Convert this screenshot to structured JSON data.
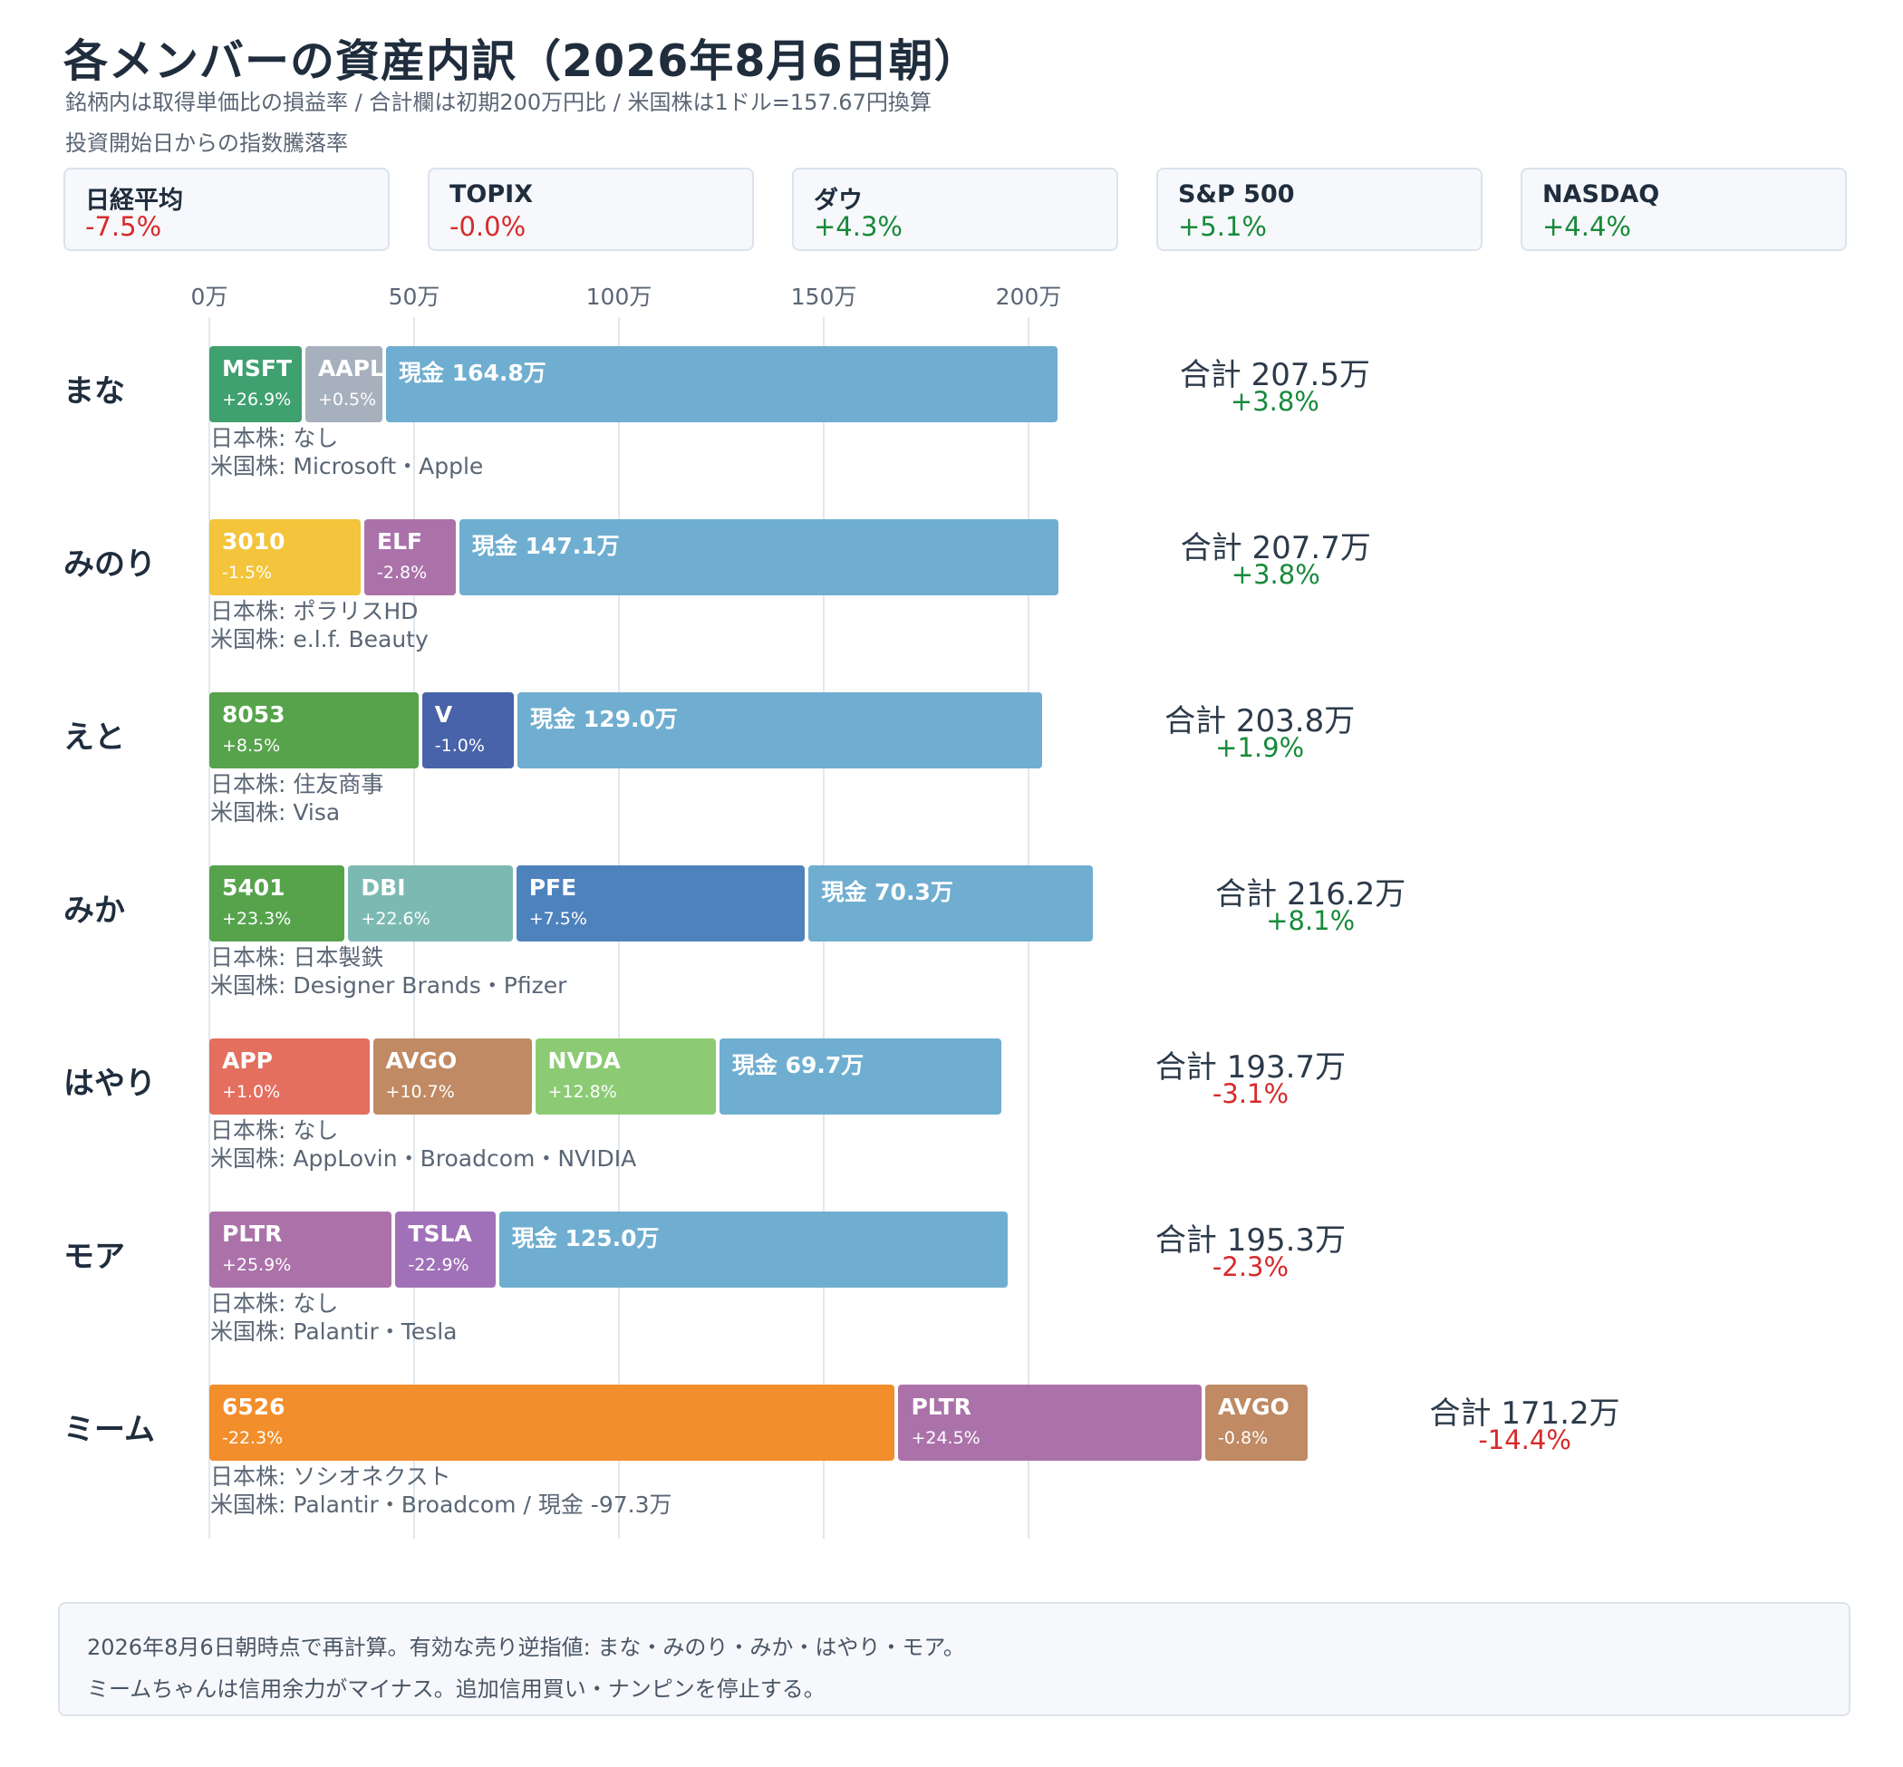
{
  "title": "各メンバーの資産内訳（2026年8月6日朝）",
  "subtitle1": "銘柄内は取得単価比の損益率 / 合計欄は初期200万円比 / 米国株は1ドル=157.67円換算",
  "subtitle2": "投資開始日からの指数騰落率",
  "indices": [
    {
      "name": "日経平均",
      "value": "-7.5%",
      "sign": "neg"
    },
    {
      "name": "TOPIX",
      "value": "-0.0%",
      "sign": "neg"
    },
    {
      "name": "ダウ",
      "value": "+4.3%",
      "sign": "pos"
    },
    {
      "name": "S&P 500",
      "value": "+5.1%",
      "sign": "pos"
    },
    {
      "name": "NASDAQ",
      "value": "+4.4%",
      "sign": "pos"
    }
  ],
  "colors": {
    "cash": "#6faed0",
    "pos": "#178a3a",
    "neg": "#d62a2a"
  },
  "chart_data": {
    "type": "bar",
    "orientation": "horizontal-stacked",
    "unit": "万",
    "xlim": [
      0,
      200
    ],
    "ticks": [
      0,
      50,
      100,
      150,
      200
    ],
    "tick_labels": [
      "0万",
      "50万",
      "100万",
      "150万",
      "200万"
    ],
    "grid": true,
    "members": [
      {
        "name": "まな",
        "segments": [
          {
            "ticker": "MSFT",
            "pct": "+26.9%",
            "value": 23.0,
            "color": "#3fa070"
          },
          {
            "ticker": "AAPL",
            "pct": "+0.5%",
            "value": 19.7,
            "color": "#a7b0bd"
          },
          {
            "ticker": "現金 164.8万",
            "pct": "",
            "value": 164.8,
            "color": "#6faed0"
          }
        ],
        "jp": "日本株: なし",
        "us": "米国株: Microsoft・Apple",
        "total": "合計 207.5万",
        "total_pct": "+3.8%",
        "sign": "pos"
      },
      {
        "name": "みのり",
        "segments": [
          {
            "ticker": "3010",
            "pct": "-1.5%",
            "value": 37.4,
            "color": "#f3c43c"
          },
          {
            "ticker": "ELF",
            "pct": "-2.8%",
            "value": 23.2,
            "color": "#ab72aa"
          },
          {
            "ticker": "現金 147.1万",
            "pct": "",
            "value": 147.1,
            "color": "#6faed0"
          }
        ],
        "jp": "日本株: ポラリスHD",
        "us": "米国株: e.l.f. Beauty",
        "total": "合計 207.7万",
        "total_pct": "+3.8%",
        "sign": "pos"
      },
      {
        "name": "えと",
        "segments": [
          {
            "ticker": "8053",
            "pct": "+8.5%",
            "value": 51.5,
            "color": "#56a34c"
          },
          {
            "ticker": "V",
            "pct": "-1.0%",
            "value": 23.3,
            "color": "#4863a9"
          },
          {
            "ticker": "現金 129.0万",
            "pct": "",
            "value": 129.0,
            "color": "#6faed0"
          }
        ],
        "jp": "日本株: 住友商事",
        "us": "米国株: Visa",
        "total": "合計 203.8万",
        "total_pct": "+1.9%",
        "sign": "pos"
      },
      {
        "name": "みか",
        "segments": [
          {
            "ticker": "5401",
            "pct": "+23.3%",
            "value": 33.5,
            "color": "#56a34c"
          },
          {
            "ticker": "DBI",
            "pct": "+22.6%",
            "value": 41.0,
            "color": "#7db9b3"
          },
          {
            "ticker": "PFE",
            "pct": "+7.5%",
            "value": 71.4,
            "color": "#4e82bd"
          },
          {
            "ticker": "現金 70.3万",
            "pct": "",
            "value": 70.3,
            "color": "#6faed0"
          }
        ],
        "jp": "日本株: 日本製鉄",
        "us": "米国株: Designer Brands・Pfizer",
        "total": "合計 216.2万",
        "total_pct": "+8.1%",
        "sign": "pos"
      },
      {
        "name": "はやり",
        "segments": [
          {
            "ticker": "APP",
            "pct": "+1.0%",
            "value": 39.5,
            "color": "#e46f5f"
          },
          {
            "ticker": "AVGO",
            "pct": "+10.7%",
            "value": 39.6,
            "color": "#bf8a64"
          },
          {
            "ticker": "NVDA",
            "pct": "+12.8%",
            "value": 45.0,
            "color": "#8ccb74"
          },
          {
            "ticker": "現金 69.7万",
            "pct": "",
            "value": 69.7,
            "color": "#6faed0"
          }
        ],
        "jp": "日本株: なし",
        "us": "米国株: AppLovin・Broadcom・NVIDIA",
        "total": "合計 193.7万",
        "total_pct": "-3.1%",
        "sign": "neg"
      },
      {
        "name": "モア",
        "segments": [
          {
            "ticker": "PLTR",
            "pct": "+25.9%",
            "value": 45.0,
            "color": "#ab72aa"
          },
          {
            "ticker": "TSLA",
            "pct": "-22.9%",
            "value": 25.3,
            "color": "#a071b8"
          },
          {
            "ticker": "現金 125.0万",
            "pct": "",
            "value": 125.0,
            "color": "#6faed0"
          }
        ],
        "jp": "日本株: なし",
        "us": "米国株: Palantir・Tesla",
        "total": "合計 195.3万",
        "total_pct": "-2.3%",
        "sign": "neg"
      },
      {
        "name": "ミーム",
        "segments": [
          {
            "ticker": "6526",
            "pct": "-22.3%",
            "value": 167.8,
            "color": "#f28e2b"
          },
          {
            "ticker": "PLTR",
            "pct": "+24.5%",
            "value": 74.9,
            "color": "#ab72aa"
          },
          {
            "ticker": "AVGO",
            "pct": "-0.8%",
            "value": 25.8,
            "color": "#bf8a64"
          }
        ],
        "jp": "日本株: ソシオネクスト",
        "us": "米国株: Palantir・Broadcom / 現金 -97.3万",
        "total": "合計 171.2万",
        "total_pct": "-14.4%",
        "sign": "neg"
      }
    ]
  },
  "note": {
    "line1": "2026年8月6日朝時点で再計算。有効な売り逆指値: まな・みのり・みか・はやり・モア。",
    "line2": "ミームちゃんは信用余力がマイナス。追加信用買い・ナンピンを停止する。"
  }
}
